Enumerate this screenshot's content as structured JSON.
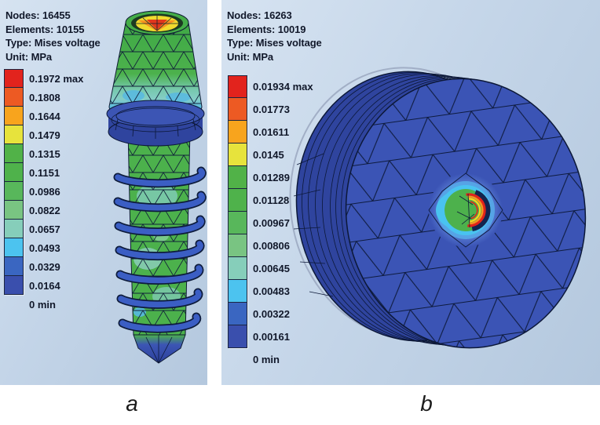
{
  "panels": [
    {
      "name": "implant",
      "caption": "a",
      "info_lines": [
        "Nodes: 16455",
        "Elements: 10155",
        "Type: Mises voltage",
        "Unit: MPa"
      ],
      "legend": {
        "unit": "MPa",
        "entries": [
          {
            "value": "0.1972 max",
            "color": "#e2231d"
          },
          {
            "value": "0.1808",
            "color": "#ed5a23"
          },
          {
            "value": "0.1644",
            "color": "#f8a41d"
          },
          {
            "value": "0.1479",
            "color": "#e7e33c"
          },
          {
            "value": "0.1315",
            "color": "#51b248"
          },
          {
            "value": "0.1151",
            "color": "#4fb24b"
          },
          {
            "value": "0.0986",
            "color": "#58b75b"
          },
          {
            "value": "0.0822",
            "color": "#79c482"
          },
          {
            "value": "0.0657",
            "color": "#86ceba"
          },
          {
            "value": "0.0493",
            "color": "#4cc3ef"
          },
          {
            "value": "0.0329",
            "color": "#3a66c1"
          },
          {
            "value": "0.0164",
            "color": "#3a4fad"
          }
        ],
        "min_label": "0 min"
      }
    },
    {
      "name": "bone-block",
      "caption": "b",
      "info_lines": [
        "Nodes: 16263",
        "Elements: 10019",
        "Type: Mises voltage",
        "Unit: MPa"
      ],
      "legend": {
        "unit": "MPa",
        "entries": [
          {
            "value": "0.01934 max",
            "color": "#e2231d"
          },
          {
            "value": "0.01773",
            "color": "#ed5a23"
          },
          {
            "value": "0.01611",
            "color": "#f8a41d"
          },
          {
            "value": "0.0145",
            "color": "#e7e33c"
          },
          {
            "value": "0.01289",
            "color": "#51b248"
          },
          {
            "value": "0.01128",
            "color": "#4fb24b"
          },
          {
            "value": "0.00967",
            "color": "#58b75b"
          },
          {
            "value": "0.00806",
            "color": "#79c482"
          },
          {
            "value": "0.00645",
            "color": "#86ceba"
          },
          {
            "value": "0.00483",
            "color": "#4cc3ef"
          },
          {
            "value": "0.00322",
            "color": "#3a66c1"
          },
          {
            "value": "0.00161",
            "color": "#3a4fad"
          }
        ],
        "min_label": "0 min"
      }
    }
  ],
  "colors": {
    "panel_background_top": "#d6e3f1",
    "panel_background_bottom": "#b4c8de",
    "text": "#11182a",
    "model_low_stress_blue": "#3b54b5",
    "model_mid_stress_green": "#4cb14c",
    "model_high_stress_red": "#e2231a"
  }
}
